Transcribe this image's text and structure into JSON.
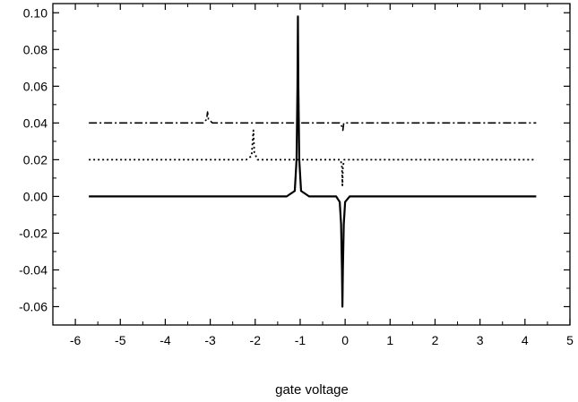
{
  "chart_data": {
    "type": "line",
    "title": "",
    "xlabel": "gate voltage",
    "ylabel": "",
    "xlim": [
      -6.5,
      5
    ],
    "ylim": [
      -0.07,
      0.105
    ],
    "xticks": [
      -6,
      -5,
      -4,
      -3,
      -2,
      -1,
      0,
      1,
      2,
      3,
      4,
      5
    ],
    "xtick_labels": [
      "-6",
      "-5",
      "-4",
      "-3",
      "-2",
      "-1",
      "0",
      "1",
      "2",
      "3",
      "4",
      "5"
    ],
    "yticks": [
      0.1,
      0.08,
      0.06,
      0.04,
      0.02,
      0.0,
      -0.02,
      -0.04,
      -0.06
    ],
    "ytick_labels": [
      "0.10",
      "0.08",
      "0.06",
      "0.04",
      "0.02",
      "0.00",
      "-0.02",
      "-0.04",
      "-0.06"
    ],
    "grid": false,
    "legend": "none",
    "series": [
      {
        "style": "solid",
        "x": [
          -5.7,
          -1.3,
          -1.12,
          -1.08,
          -1.06,
          -1.05,
          -1.04,
          -1.02,
          -0.98,
          -0.8,
          -0.2,
          -0.12,
          -0.09,
          -0.07,
          -0.06,
          -0.05,
          -0.03,
          0.0,
          0.1,
          4.25
        ],
        "y": [
          0.0,
          0.0,
          0.003,
          0.02,
          0.06,
          0.098,
          0.06,
          0.02,
          0.003,
          0.0,
          0.0,
          -0.003,
          -0.015,
          -0.04,
          -0.06,
          -0.04,
          -0.015,
          -0.003,
          0.0,
          0.0
        ]
      },
      {
        "style": "dotted",
        "x": [
          -5.7,
          -2.2,
          -2.08,
          -2.06,
          -2.04,
          -2.02,
          -1.95,
          -0.1,
          -0.07,
          -0.06,
          -0.05,
          -0.02,
          4.25
        ],
        "y": [
          0.02,
          0.02,
          0.022,
          0.029,
          0.036,
          0.024,
          0.02,
          0.02,
          0.016,
          0.006,
          0.016,
          0.02,
          0.02
        ],
        "y_offset": 0.02
      },
      {
        "style": "dashdot",
        "x": [
          -5.7,
          -3.15,
          -3.08,
          -3.06,
          -3.04,
          -2.95,
          -0.12,
          -0.07,
          -0.05,
          -0.03,
          4.25
        ],
        "y": [
          0.04,
          0.04,
          0.042,
          0.046,
          0.042,
          0.04,
          0.04,
          0.038,
          0.036,
          0.04,
          0.04
        ],
        "y_offset": 0.04
      }
    ]
  }
}
